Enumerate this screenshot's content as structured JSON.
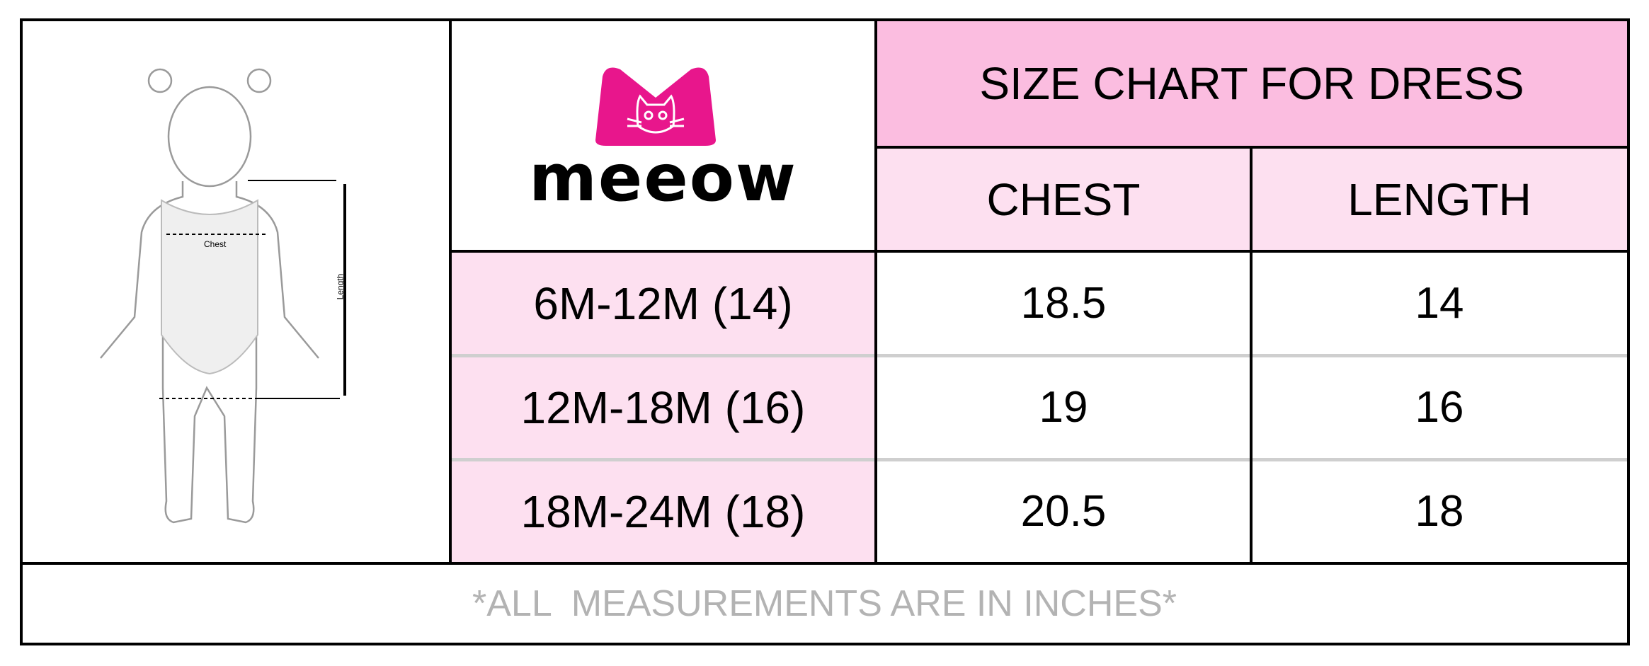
{
  "brand": {
    "name": "meeow",
    "accent_color": "#e8168c"
  },
  "illustration": {
    "chest_label": "Chest",
    "length_label": "Length"
  },
  "chart": {
    "title": "SIZE CHART FOR DRESS",
    "columns": [
      "CHEST",
      "LENGTH"
    ],
    "rows": [
      {
        "size": "6M-12M (14)",
        "chest": "18.5",
        "length": "14"
      },
      {
        "size": "12M-18M (16)",
        "chest": "19",
        "length": "16"
      },
      {
        "size": "18M-24M (18)",
        "chest": "20.5",
        "length": "18"
      }
    ],
    "footnote": "*ALL  MEASUREMENTS ARE IN INCHES*"
  },
  "colors": {
    "title_bg": "#fbbde0",
    "header_bg": "#fde0f0",
    "size_bg": "#fde0f0",
    "row_divider": "#cfcfcf"
  }
}
